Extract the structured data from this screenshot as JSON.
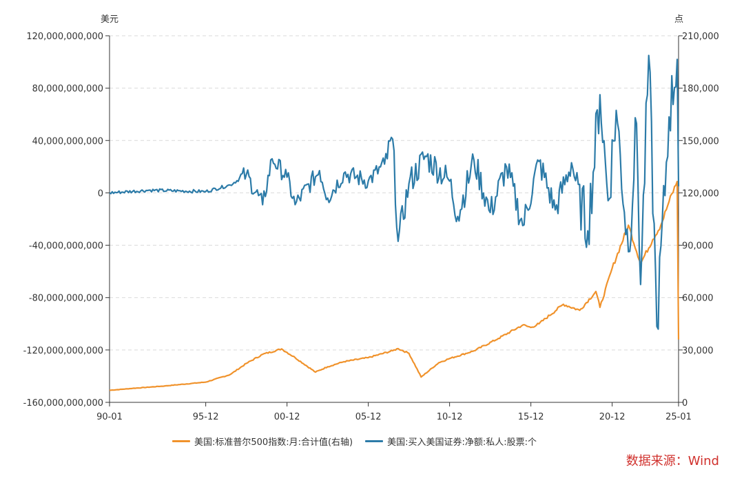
{
  "chart_data": {
    "type": "line",
    "left_unit": "美元",
    "right_unit": "点",
    "x_ticks": [
      "90-01",
      "95-12",
      "00-12",
      "05-12",
      "10-12",
      "15-12",
      "20-12",
      "25-01"
    ],
    "y_left": {
      "ticks": [
        "120,000,000,000",
        "80,000,000,000",
        "40,000,000,000",
        "0",
        "-40,000,000,000",
        "-80,000,000,000",
        "-120,000,000,000",
        "-160,000,000,000"
      ],
      "range": [
        -160000000000,
        120000000000
      ]
    },
    "y_right": {
      "ticks": [
        "210,000",
        "180,000",
        "150,000",
        "120,000",
        "90,000",
        "60,000",
        "30,000",
        "0"
      ],
      "range": [
        0,
        210000
      ]
    },
    "grid": "horizontal dashed",
    "legend_position": "bottom",
    "series": [
      {
        "name": "美国:标准普尔500指数:月:合计值(右轴)",
        "axis": "right",
        "color": "#F0922B",
        "points": [
          [
            "1990-01",
            6900
          ],
          [
            "1991-06",
            8000
          ],
          [
            "1993-06",
            9400
          ],
          [
            "1995-12",
            11600
          ],
          [
            "1997-06",
            15900
          ],
          [
            "1998-06",
            22300
          ],
          [
            "1999-06",
            27500
          ],
          [
            "2000-08",
            30600
          ],
          [
            "2001-06",
            25600
          ],
          [
            "2002-09",
            17300
          ],
          [
            "2003-06",
            20400
          ],
          [
            "2004-06",
            23300
          ],
          [
            "2005-12",
            25600
          ],
          [
            "2007-06",
            29600
          ],
          [
            "2007-10",
            30800
          ],
          [
            "2008-06",
            28100
          ],
          [
            "2009-03",
            14500
          ],
          [
            "2010-04",
            22700
          ],
          [
            "2010-12",
            25100
          ],
          [
            "2012-06",
            29500
          ],
          [
            "2013-12",
            36600
          ],
          [
            "2015-06",
            44300
          ],
          [
            "2015-12",
            42900
          ],
          [
            "2016-06",
            45000
          ],
          [
            "2017-12",
            56200
          ],
          [
            "2018-12",
            52700
          ],
          [
            "2019-12",
            63500
          ],
          [
            "2020-03",
            54400
          ],
          [
            "2020-12",
            76800
          ],
          [
            "2021-12",
            101500
          ],
          [
            "2022-09",
            79600
          ],
          [
            "2023-06",
            93300
          ],
          [
            "2023-12",
            101600
          ],
          [
            "2024-06",
            115000
          ],
          [
            "2024-12",
            126500
          ],
          [
            "2025-01",
            36000
          ]
        ]
      },
      {
        "name": "美国:买入美国证券:净额:私人:股票:个",
        "axis": "left",
        "color": "#2C7BA8",
        "points": [
          [
            "1990-01",
            0
          ],
          [
            "1992-06",
            2000000000
          ],
          [
            "1995-12",
            1000000000
          ],
          [
            "1997-06",
            6000000000
          ],
          [
            "1998-06",
            14000000000
          ],
          [
            "1999-06",
            -9000000000
          ],
          [
            "2000-01",
            26000000000
          ],
          [
            "2000-12",
            12000000000
          ],
          [
            "2001-06",
            -9000000000
          ],
          [
            "2002-12",
            17000000000
          ],
          [
            "2003-06",
            -4000000000
          ],
          [
            "2004-06",
            15000000000
          ],
          [
            "2005-12",
            9000000000
          ],
          [
            "2006-12",
            22000000000
          ],
          [
            "2007-06",
            41000000000
          ],
          [
            "2007-10",
            -37000000000
          ],
          [
            "2008-06",
            7000000000
          ],
          [
            "2009-06",
            28000000000
          ],
          [
            "2010-12",
            9000000000
          ],
          [
            "2011-06",
            -18000000000
          ],
          [
            "2012-06",
            25000000000
          ],
          [
            "2013-06",
            -15000000000
          ],
          [
            "2014-06",
            20000000000
          ],
          [
            "2015-06",
            -25000000000
          ],
          [
            "2016-06",
            24000000000
          ],
          [
            "2017-06",
            -13000000000
          ],
          [
            "2018-06",
            23000000000
          ],
          [
            "2019-06",
            -29000000000
          ],
          [
            "2020-03",
            75000000000
          ],
          [
            "2020-09",
            -6000000000
          ],
          [
            "2021-03",
            63000000000
          ],
          [
            "2021-12",
            -45000000000
          ],
          [
            "2022-06",
            53000000000
          ],
          [
            "2022-09",
            -70000000000
          ],
          [
            "2023-03",
            105000000000
          ],
          [
            "2023-09",
            -102000000000
          ],
          [
            "2024-06",
            58000000000
          ],
          [
            "2024-12",
            102000000000
          ],
          [
            "2025-01",
            5000000000
          ]
        ]
      }
    ]
  },
  "source": {
    "text": "数据来源：Wind",
    "color": "#D0312D"
  }
}
